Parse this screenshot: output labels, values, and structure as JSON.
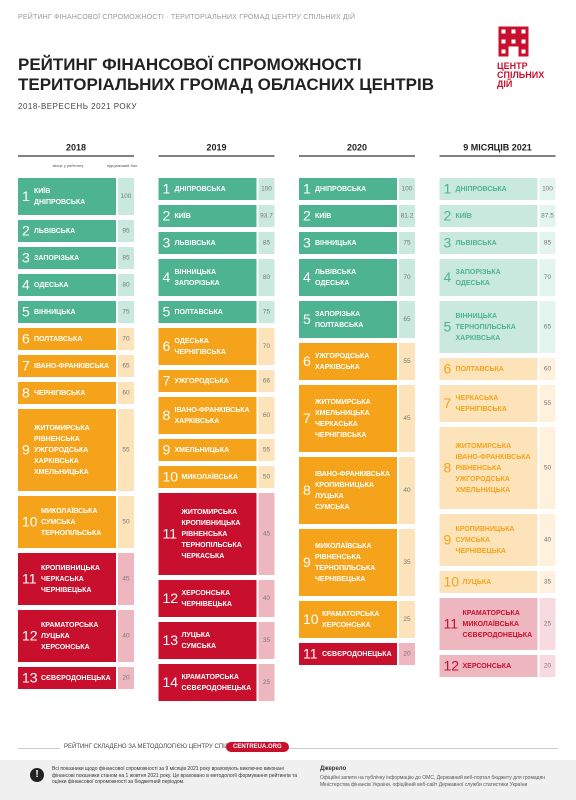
{
  "header": {
    "topline": "РЕЙТИНГ ФІНАНСОВОЇ СПРОМОЖНОСТІ · ТЕРИТОРІАЛЬНИХ ГРОМАД ЦЕНТРУ СПІЛЬНИХ ДІЙ",
    "title": [
      "РЕЙТИНГ ФІНАНСОВОЇ СПРОМОЖНОСТІ",
      "ТЕРИТОРІАЛЬНИХ ГРОМАД ОБЛАСНИХ ЦЕНТРІВ"
    ],
    "subtitle": "2018-ВЕРЕСЕНЬ 2021 РОКУ",
    "logo": [
      "ЦЕНТР",
      "СПІЛЬНИХ",
      "ДІЙ"
    ]
  },
  "legend": {
    "rank": "місце у рейтингу",
    "score": "підсумковий бал"
  },
  "columns": [
    {
      "year": "2018",
      "faded": false,
      "groups": [
        {
          "rank": 1,
          "cities": [
            "КИЇВ",
            "ДНІПРОВСЬКА"
          ],
          "score": 100,
          "color": "#4db391"
        },
        {
          "rank": 2,
          "cities": [
            "ЛЬВІВСЬКА"
          ],
          "score": 95,
          "color": "#4db391"
        },
        {
          "rank": 3,
          "cities": [
            "ЗАПОРІЗЬКА"
          ],
          "score": 85,
          "color": "#4db391"
        },
        {
          "rank": 4,
          "cities": [
            "ОДЕСЬКА"
          ],
          "score": 80,
          "color": "#4db391"
        },
        {
          "rank": 5,
          "cities": [
            "ВІННИЦЬКА"
          ],
          "score": 75,
          "color": "#4db391"
        },
        {
          "rank": 6,
          "cities": [
            "ПОЛТАВСЬКА"
          ],
          "score": 70,
          "color": "#f5a31a"
        },
        {
          "rank": 7,
          "cities": [
            "ІВАНО-ФРАНКІВСЬКА"
          ],
          "score": 65,
          "color": "#f5a31a"
        },
        {
          "rank": 8,
          "cities": [
            "ЧЕРНІГІВСЬКА"
          ],
          "score": 60,
          "color": "#f5a31a"
        },
        {
          "rank": 9,
          "cities": [
            "ЖИТОМИРСЬКА",
            "РІВНЕНСЬКА",
            "УЖГОРОДСЬКА",
            "ХАРКІВСЬКА",
            "ХМЕЛЬНИЦЬКА"
          ],
          "score": 55,
          "color": "#f5a31a"
        },
        {
          "rank": 10,
          "cities": [
            "МИКОЛАЇВСЬКА",
            "СУМСЬКА",
            "ТЕРНОПІЛЬСЬКА"
          ],
          "score": 50,
          "color": "#f5a31a"
        },
        {
          "rank": 11,
          "cities": [
            "КРОПИВНИЦЬКА",
            "ЧЕРКАСЬКА",
            "ЧЕРНІВЕЦЬКА"
          ],
          "score": 45,
          "color": "#c8102e"
        },
        {
          "rank": 12,
          "cities": [
            "КРАМАТОРСЬКА",
            "ЛУЦЬКА",
            "ХЕРСОНСЬКА"
          ],
          "score": 40,
          "color": "#c8102e"
        },
        {
          "rank": 13,
          "cities": [
            "СЄВЄРОДОНЕЦЬКА"
          ],
          "score": 20,
          "color": "#c8102e"
        }
      ]
    },
    {
      "year": "2019",
      "faded": false,
      "groups": [
        {
          "rank": 1,
          "cities": [
            "ДНІПРОВСЬКА"
          ],
          "score": 100,
          "color": "#4db391"
        },
        {
          "rank": 2,
          "cities": [
            "КИЇВ"
          ],
          "score": 93.7,
          "color": "#4db391"
        },
        {
          "rank": 3,
          "cities": [
            "ЛЬВІВСЬКА"
          ],
          "score": 85,
          "color": "#4db391"
        },
        {
          "rank": 4,
          "cities": [
            "ВІННИЦЬКА",
            "ЗАПОРІЗЬКА"
          ],
          "score": 80,
          "color": "#4db391"
        },
        {
          "rank": 5,
          "cities": [
            "ПОЛТАВСЬКА"
          ],
          "score": 75,
          "color": "#4db391"
        },
        {
          "rank": 6,
          "cities": [
            "ОДЕСЬКА",
            "ЧЕРНІГІВСЬКА"
          ],
          "score": 70,
          "color": "#f5a31a"
        },
        {
          "rank": 7,
          "cities": [
            "УЖГОРОДСЬКА"
          ],
          "score": 66,
          "color": "#f5a31a"
        },
        {
          "rank": 8,
          "cities": [
            "ІВАНО-ФРАНКІВСЬКА",
            "ХАРКІВСЬКА"
          ],
          "score": 60,
          "color": "#f5a31a"
        },
        {
          "rank": 9,
          "cities": [
            "ХМЕЛЬНИЦЬКА"
          ],
          "score": 55,
          "color": "#f5a31a"
        },
        {
          "rank": 10,
          "cities": [
            "МИКОЛАЇВСЬКА"
          ],
          "score": 50,
          "color": "#f5a31a"
        },
        {
          "rank": 11,
          "cities": [
            "ЖИТОМИРСЬКА",
            "КРОПИВНИЦЬКА",
            "РІВНЕНСЬКА",
            "ТЕРНОПІЛЬСЬКА",
            "ЧЕРКАСЬКА"
          ],
          "score": 45,
          "color": "#c8102e"
        },
        {
          "rank": 12,
          "cities": [
            "ХЕРСОНСЬКА",
            "ЧЕРНІВЕЦЬКА"
          ],
          "score": 40,
          "color": "#c8102e"
        },
        {
          "rank": 13,
          "cities": [
            "ЛУЦЬКА",
            "СУМСЬКА"
          ],
          "score": 35,
          "color": "#c8102e"
        },
        {
          "rank": 14,
          "cities": [
            "КРАМАТОРСЬКА",
            "СЄВЄРОДОНЕЦЬКА"
          ],
          "score": 25,
          "color": "#c8102e"
        }
      ]
    },
    {
      "year": "2020",
      "faded": false,
      "groups": [
        {
          "rank": 1,
          "cities": [
            "ДНІПРОВСЬКА"
          ],
          "score": 100,
          "color": "#4db391"
        },
        {
          "rank": 2,
          "cities": [
            "КИЇВ"
          ],
          "score": 81.2,
          "color": "#4db391"
        },
        {
          "rank": 3,
          "cities": [
            "ВІННИЦЬКА"
          ],
          "score": 75,
          "color": "#4db391"
        },
        {
          "rank": 4,
          "cities": [
            "ЛЬВІВСЬКА",
            "ОДЕСЬКА"
          ],
          "score": 70,
          "color": "#4db391"
        },
        {
          "rank": 5,
          "cities": [
            "ЗАПОРІЗЬКА",
            "ПОЛТАВСЬКА"
          ],
          "score": 65,
          "color": "#4db391"
        },
        {
          "rank": 6,
          "cities": [
            "УЖГОРОДСЬКА",
            "ХАРКІВСЬКА"
          ],
          "score": 55,
          "color": "#f5a31a"
        },
        {
          "rank": 7,
          "cities": [
            "ЖИТОМИРСЬКА",
            "ХМЕЛЬНИЦЬКА",
            "ЧЕРКАСЬКА",
            "ЧЕРНІГІВСЬКА"
          ],
          "score": 45,
          "color": "#f5a31a"
        },
        {
          "rank": 8,
          "cities": [
            "ІВАНО-ФРАНКІВСЬКА",
            "КРОПИВНИЦЬКА",
            "ЛУЦЬКА",
            "СУМСЬКА"
          ],
          "score": 40,
          "color": "#f5a31a"
        },
        {
          "rank": 9,
          "cities": [
            "МИКОЛАЇВСЬКА",
            "РІВНЕНСЬКА",
            "ТЕРНОПІЛЬСЬКА",
            "ЧЕРНІВЕЦЬКА"
          ],
          "score": 35,
          "color": "#f5a31a"
        },
        {
          "rank": 10,
          "cities": [
            "КРАМАТОРСЬКА",
            "ХЕРСОНСЬКА"
          ],
          "score": 25,
          "color": "#f5a31a"
        },
        {
          "rank": 11,
          "cities": [
            "СЄВЄРОДОНЕЦЬКА"
          ],
          "score": 20,
          "color": "#c8102e"
        }
      ]
    },
    {
      "year": "9 МІСЯЦІВ 2021",
      "faded": true,
      "groups": [
        {
          "rank": 1,
          "cities": [
            "ДНІПРОВСЬКА"
          ],
          "score": 100,
          "color": "#4db391"
        },
        {
          "rank": 2,
          "cities": [
            "КИЇВ"
          ],
          "score": 87.5,
          "color": "#4db391"
        },
        {
          "rank": 3,
          "cities": [
            "ЛЬВІВСЬКА"
          ],
          "score": 85,
          "color": "#4db391"
        },
        {
          "rank": 4,
          "cities": [
            "ЗАПОРІЗЬКА",
            "ОДЕСЬКА"
          ],
          "score": 70,
          "color": "#4db391"
        },
        {
          "rank": 5,
          "cities": [
            "ВІННИЦЬКА",
            "ТЕРНОПІЛЬСЬКА",
            "ХАРКІВСЬКА"
          ],
          "score": 65,
          "color": "#4db391"
        },
        {
          "rank": 6,
          "cities": [
            "ПОЛТАВСЬКА"
          ],
          "score": 60,
          "color": "#f5a31a"
        },
        {
          "rank": 7,
          "cities": [
            "ЧЕРКАСЬКА",
            "ЧЕРНІГІВСЬКА"
          ],
          "score": 55,
          "color": "#f5a31a"
        },
        {
          "rank": 8,
          "cities": [
            "ЖИТОМИРСЬКА",
            "ІВАНО-ФРАНКІВСЬКА",
            "РІВНЕНСЬКА",
            "УЖГОРОДСЬКА",
            "ХМЕЛЬНИЦЬКА"
          ],
          "score": 50,
          "color": "#f5a31a"
        },
        {
          "rank": 9,
          "cities": [
            "КРОПИВНИЦЬКА",
            "СУМСЬКА",
            "ЧЕРНІВЕЦЬКА"
          ],
          "score": 40,
          "color": "#f5a31a"
        },
        {
          "rank": 10,
          "cities": [
            "ЛУЦЬКА"
          ],
          "score": 35,
          "color": "#f5a31a"
        },
        {
          "rank": 11,
          "cities": [
            "КРАМАТОРСЬКА",
            "МИКОЛАЇВСЬКА",
            "СЄВЄРОДОНЕЦЬКА"
          ],
          "score": 25,
          "color": "#c8102e"
        },
        {
          "rank": 12,
          "cities": [
            "ХЕРСОНСЬКА"
          ],
          "score": 20,
          "color": "#c8102e"
        }
      ]
    }
  ],
  "footer": {
    "method": "РЕЙТИНГ СКЛАДЕНО ЗА МЕТОДОЛОГІЄЮ ЦЕНТРУ СПІЛЬНИХ ДІЙ",
    "site": "CENTREUA.ORG",
    "note": "Всі показники щодо фінансової спроможності за 9 місяців 2021 року враховують виключно виконані фінансові показники станом на 1 жовтня 2021 року. Це враховано в методології формування рейтингів та оцінки фінансової спроможності за бюджетний періодом.",
    "source_title": "Джерело",
    "source": "Офіційні запити на публічну інформацію до ОМС, Державний веб-портал бюджету для громадян Міністерства фінансів України, офіційний веб-сайт Державної служби статистики України"
  }
}
